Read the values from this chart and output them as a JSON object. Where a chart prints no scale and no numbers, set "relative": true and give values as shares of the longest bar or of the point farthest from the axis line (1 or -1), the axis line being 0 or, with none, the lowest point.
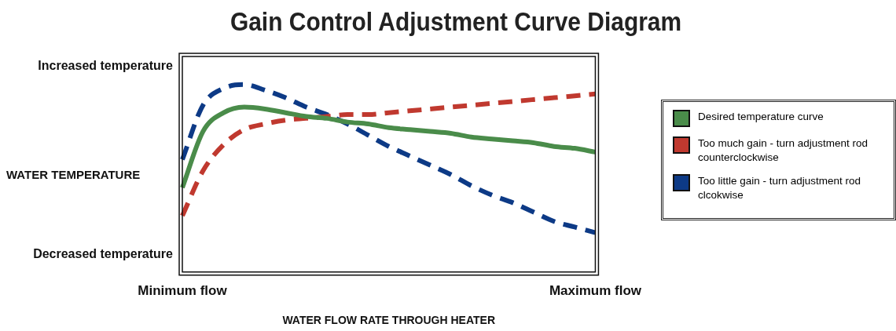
{
  "chart_data": {
    "type": "line",
    "title": "Gain Control Adjustment Curve Diagram",
    "xlabel": "WATER FLOW RATE THROUGH HEATER",
    "ylabel": "WATER TEMPERATURE",
    "relative": true,
    "legend": "right",
    "marker": "none",
    "grid": false,
    "annotations": [
      "Increased temperature",
      "Decreased temperature"
    ],
    "categories": [
      "Minimum flow",
      null,
      null,
      null,
      null,
      null,
      null,
      null,
      null,
      null,
      null,
      null,
      null,
      null,
      null,
      null,
      null,
      null,
      null,
      null,
      "Maximum flow"
    ],
    "series": [
      {
        "name": "Desired temperature curve",
        "color": "#4a8c4a",
        "line_style": "solid",
        "values": [
          0.45,
          0.75,
          0.85,
          0.88,
          0.87,
          0.85,
          0.83,
          0.82,
          0.8,
          0.79,
          0.77,
          0.76,
          0.75,
          0.74,
          0.72,
          0.71,
          0.7,
          0.69,
          0.67,
          0.66,
          0.64
        ]
      },
      {
        "name": "Too much gain - turn adjustment rod counterclockwise",
        "color": "#c0392f",
        "line_style": "dashed",
        "values": [
          0.3,
          0.54,
          0.68,
          0.76,
          0.79,
          0.81,
          0.82,
          0.83,
          0.84,
          0.84,
          0.85,
          0.86,
          0.87,
          0.88,
          0.89,
          0.9,
          0.91,
          0.92,
          0.93,
          0.94,
          0.95
        ]
      },
      {
        "name": "Too little gain - turn adjustment rod clcokwise",
        "color": "#0d3a86",
        "line_style": "dashed",
        "values": [
          0.6,
          0.89,
          0.98,
          1.0,
          0.97,
          0.93,
          0.88,
          0.84,
          0.79,
          0.73,
          0.67,
          0.62,
          0.57,
          0.52,
          0.46,
          0.41,
          0.37,
          0.32,
          0.27,
          0.24,
          0.21
        ]
      }
    ]
  }
}
